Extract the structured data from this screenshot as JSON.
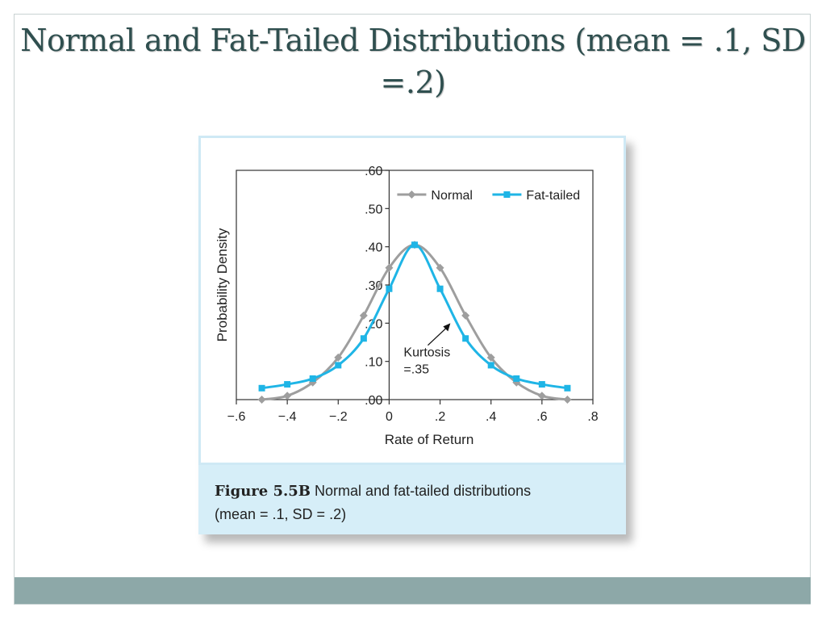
{
  "slide": {
    "title": "Normal and Fat-Tailed Distributions (mean = .1, SD =.2)"
  },
  "figure": {
    "caption_label": "Figure 5.5B",
    "caption_text_line1": "Normal and fat-tailed distributions",
    "caption_text_line2": "(mean = .1, SD = .2)"
  },
  "chart_data": {
    "type": "line",
    "xlabel": "Rate of Return",
    "ylabel": "Probability Density",
    "xlim": [
      -0.6,
      0.8
    ],
    "ylim": [
      0,
      0.6
    ],
    "x_ticks": [
      "−.6",
      "−.4",
      "−.2",
      "0",
      ".2",
      ".4",
      ".6",
      ".8"
    ],
    "y_ticks": [
      ".00",
      ".10",
      ".20",
      ".30",
      ".40",
      ".50",
      ".60"
    ],
    "legend_position": "top-right",
    "grid": false,
    "series": [
      {
        "name": "Normal",
        "color": "#9e9e9e",
        "marker": "diamond",
        "x": [
          -0.5,
          -0.4,
          -0.3,
          -0.2,
          -0.1,
          0.0,
          0.1,
          0.2,
          0.3,
          0.4,
          0.5,
          0.6,
          0.7
        ],
        "y": [
          0.0,
          0.01,
          0.045,
          0.11,
          0.22,
          0.345,
          0.405,
          0.345,
          0.22,
          0.11,
          0.045,
          0.01,
          0.0
        ]
      },
      {
        "name": "Fat-tailed",
        "color": "#1fb5e6",
        "marker": "square",
        "x": [
          -0.5,
          -0.4,
          -0.3,
          -0.2,
          -0.1,
          0.0,
          0.1,
          0.2,
          0.3,
          0.4,
          0.5,
          0.6,
          0.7
        ],
        "y": [
          0.03,
          0.04,
          0.055,
          0.09,
          0.16,
          0.29,
          0.405,
          0.29,
          0.16,
          0.09,
          0.055,
          0.04,
          0.03
        ]
      }
    ],
    "annotation": {
      "line1": "Kurtosis",
      "line2": "=.35",
      "arrow_target": [
        0.25,
        0.2
      ]
    }
  }
}
